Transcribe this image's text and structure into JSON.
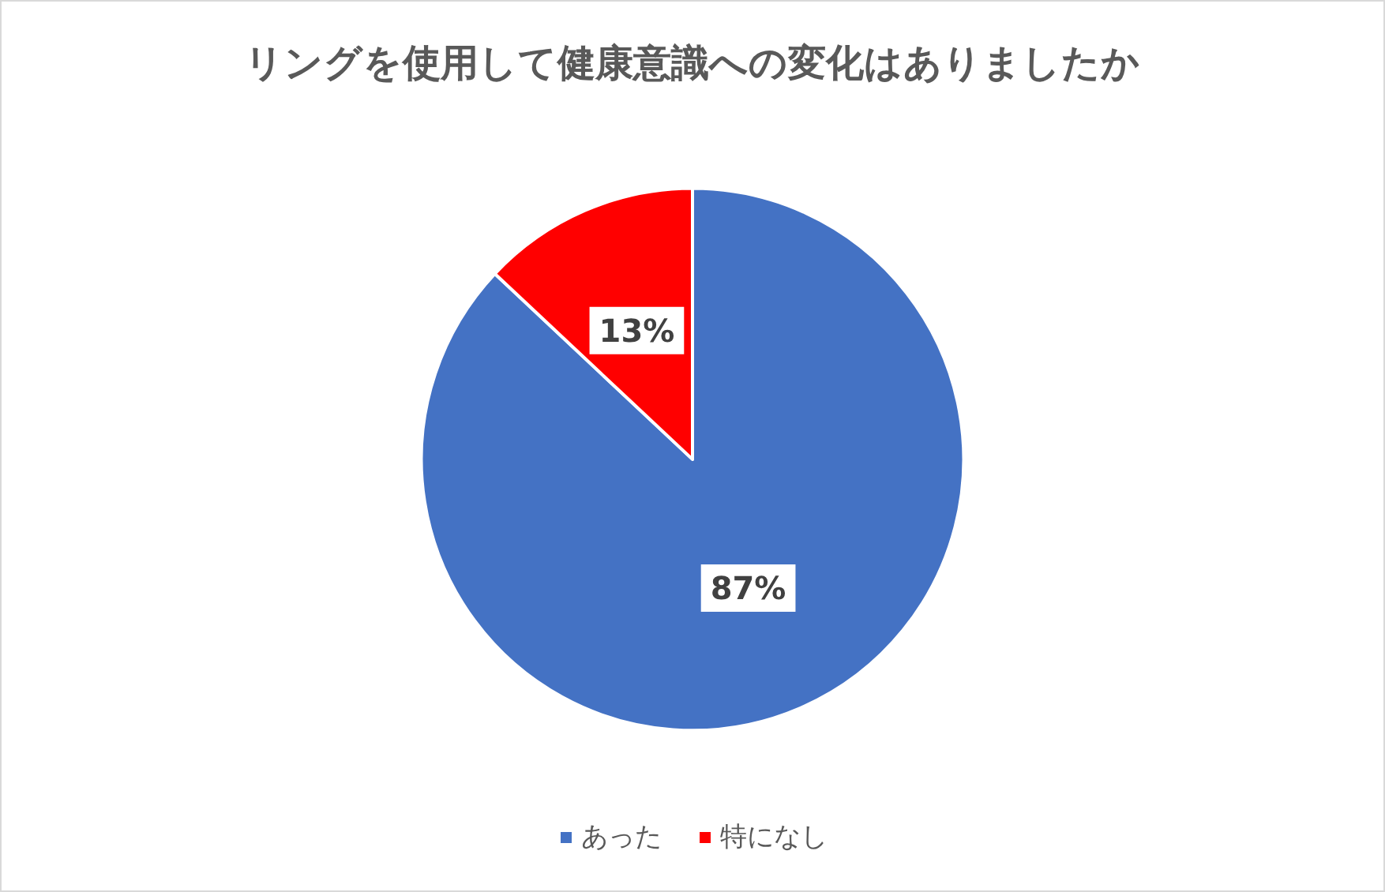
{
  "chart_data": {
    "type": "pie",
    "title": "リングを使用して健康意識への変化はありましたか",
    "categories": [
      "あった",
      "特になし"
    ],
    "values": [
      87,
      13
    ],
    "colors": [
      "#4472c4",
      "#ff0000"
    ],
    "value_labels": [
      "87%",
      "13%"
    ],
    "legend": "bottom"
  }
}
